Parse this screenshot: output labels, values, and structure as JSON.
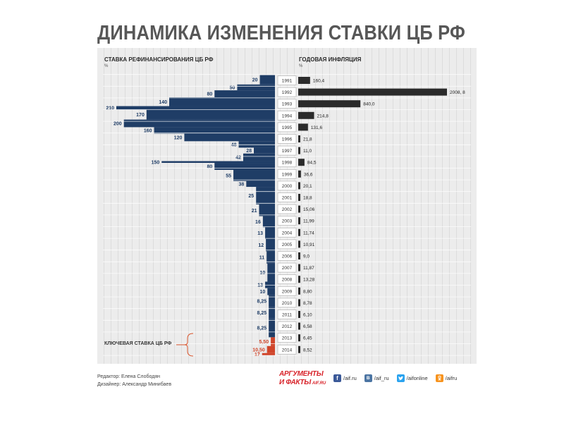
{
  "page": {
    "title": "ДИНАМИКА ИЗМЕНЕНИЯ СТАВКИ ЦБ РФ"
  },
  "chart_data": [
    {
      "type": "bar",
      "title": "СТАВКА РЕФИНАНСИРОВАНИЯ ЦБ РФ",
      "unit": "%",
      "xlim": [
        0,
        210
      ],
      "series": [
        {
          "color": "#1f3d66",
          "segments": [
            {
              "from": 1991.05,
              "to": 1991.85,
              "value": 20,
              "label": "20"
            },
            {
              "from": 1991.85,
              "to": 1992.35,
              "value": 50,
              "label": "50"
            },
            {
              "from": 1992.35,
              "to": 1992.95,
              "value": 80,
              "label": "80"
            },
            {
              "from": 1992.95,
              "to": 1993.7,
              "value": 140,
              "label": "140"
            },
            {
              "from": 1993.7,
              "to": 1994.0,
              "value": 210,
              "label": "210"
            },
            {
              "from": 1994.0,
              "to": 1994.85,
              "value": 170,
              "label": "170"
            },
            {
              "from": 1994.85,
              "to": 1995.5,
              "value": 200,
              "label": "200"
            },
            {
              "from": 1995.5,
              "to": 1996.05,
              "value": 160,
              "label": "160"
            },
            {
              "from": 1996.05,
              "to": 1996.7,
              "value": 120,
              "label": "120"
            },
            {
              "from": 1996.7,
              "to": 1997.25,
              "value": 48,
              "label": "48"
            },
            {
              "from": 1997.25,
              "to": 1997.75,
              "value": 28,
              "label": "28"
            },
            {
              "from": 1997.75,
              "to": 1998.4,
              "value": 42,
              "label": "42"
            },
            {
              "from": 1998.4,
              "to": 1998.55,
              "value": 150,
              "label": "150"
            },
            {
              "from": 1998.55,
              "to": 1999.15,
              "value": 80,
              "label": "80"
            },
            {
              "from": 1999.15,
              "to": 2000.1,
              "value": 55,
              "label": "55"
            },
            {
              "from": 2000.1,
              "to": 2000.6,
              "value": 38,
              "label": "38"
            },
            {
              "from": 2000.6,
              "to": 2002.1,
              "value": 25,
              "label": "25"
            },
            {
              "from": 2002.1,
              "to": 2003.1,
              "value": 21,
              "label": "21"
            },
            {
              "from": 2003.1,
              "to": 2004.05,
              "value": 16,
              "label": "16"
            },
            {
              "from": 2004.05,
              "to": 2005.05,
              "value": 13,
              "label": "13"
            },
            {
              "from": 2005.05,
              "to": 2006.1,
              "value": 12,
              "label": "12"
            },
            {
              "from": 2006.1,
              "to": 2007.15,
              "value": 11,
              "label": "11"
            },
            {
              "from": 2007.15,
              "to": 2008.7,
              "value": 10,
              "label": "10"
            },
            {
              "from": 2008.7,
              "to": 2009.25,
              "value": 13,
              "label": "13"
            },
            {
              "from": 2009.25,
              "to": 2009.85,
              "value": 10,
              "label": "10"
            },
            {
              "from": 2009.85,
              "to": 2010.85,
              "value": 8.25,
              "label": "8,25"
            },
            {
              "from": 2010.85,
              "to": 2011.85,
              "value": 8.25,
              "label": "8,25"
            },
            {
              "from": 2011.85,
              "to": 2013.45,
              "value": 8.25,
              "label": "8,25"
            }
          ]
        },
        {
          "name": "КЛЮЧЕВАЯ СТАВКА ЦБ РФ",
          "color": "#d0452a",
          "segments": [
            {
              "from": 2013.45,
              "to": 2014.2,
              "value": 5.5,
              "label": "5,50"
            },
            {
              "from": 2014.2,
              "to": 2014.8,
              "value": 10.5,
              "label": "10,50"
            },
            {
              "from": 2014.8,
              "to": 2015.0,
              "value": 17,
              "label": "17"
            }
          ]
        }
      ]
    },
    {
      "type": "bar",
      "title": "ГОДОВАЯ ИНФЛЯЦИЯ",
      "unit": "%",
      "xlim": [
        0,
        2008.8
      ],
      "color": "#2b2b2b",
      "categories": [
        1991,
        1992,
        1993,
        1994,
        1995,
        1996,
        1997,
        1998,
        1999,
        2000,
        2001,
        2002,
        2003,
        2004,
        2005,
        2006,
        2007,
        2008,
        2009,
        2010,
        2011,
        2012,
        2013,
        2014
      ],
      "values": [
        160.4,
        2008.8,
        840.0,
        214.8,
        131.6,
        21.8,
        11.0,
        84.5,
        36.6,
        20.1,
        18.8,
        15.06,
        11.99,
        11.74,
        10.91,
        9.0,
        11.87,
        13.28,
        8.8,
        8.78,
        6.1,
        6.58,
        6.45,
        8.52
      ],
      "value_labels": [
        "160,4",
        "2008, 8",
        "840,0",
        "214,8",
        "131,6",
        "21,8",
        "11,0",
        "84,5",
        "36,6",
        "20,1",
        "18,8",
        "15,06",
        "11,99",
        "11,74",
        "10,91",
        "9,0",
        "11,87",
        "13,28",
        "8,80",
        "8,78",
        "6,10",
        "6,58",
        "6,45",
        "8,52"
      ]
    }
  ],
  "credits": {
    "editor": "Редактор: Елена Слободян",
    "designer": "Дизайнер: Александр Минибаев"
  },
  "logo": {
    "top": "АРГУМЕНТЫ",
    "bottom": "И ФАКТЫ",
    "site": "AIF.RU"
  },
  "social": [
    {
      "icon": "facebook-icon",
      "handle": "/aif.ru",
      "color": "#3b5998"
    },
    {
      "icon": "vk-icon",
      "handle": "/aif_ru",
      "color": "#4c75a3"
    },
    {
      "icon": "twitter-icon",
      "handle": "/aifonline",
      "color": "#2aa3ef"
    },
    {
      "icon": "odnoklassniki-icon",
      "handle": "/aifru",
      "color": "#f7931e"
    }
  ]
}
